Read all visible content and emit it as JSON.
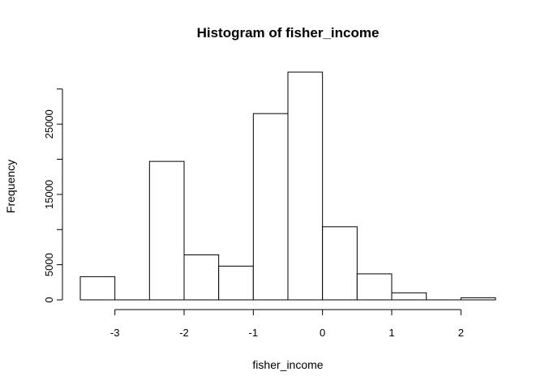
{
  "chart_data": {
    "type": "bar",
    "title": "Histogram of fisher_income",
    "xlabel": "fisher_income",
    "ylabel": "Frequency",
    "bins": [
      {
        "x0": -3.5,
        "x1": -3.0,
        "count": 3300
      },
      {
        "x0": -3.0,
        "x1": -2.5,
        "count": 0
      },
      {
        "x0": -2.5,
        "x1": -2.0,
        "count": 19700
      },
      {
        "x0": -2.0,
        "x1": -1.5,
        "count": 6400
      },
      {
        "x0": -1.5,
        "x1": -1.0,
        "count": 4800
      },
      {
        "x0": -1.0,
        "x1": -0.5,
        "count": 26500
      },
      {
        "x0": -0.5,
        "x1": 0.0,
        "count": 32400
      },
      {
        "x0": 0.0,
        "x1": 0.5,
        "count": 10400
      },
      {
        "x0": 0.5,
        "x1": 1.0,
        "count": 3700
      },
      {
        "x0": 1.0,
        "x1": 1.5,
        "count": 1000
      },
      {
        "x0": 1.5,
        "x1": 2.0,
        "count": 0
      },
      {
        "x0": 2.0,
        "x1": 2.5,
        "count": 300
      }
    ],
    "xticks": [
      -3,
      -2,
      -1,
      0,
      1,
      2
    ],
    "xtick_labels": [
      "-3",
      "-2",
      "-1",
      "0",
      "1",
      "2"
    ],
    "yticks": [
      0,
      5000,
      10000,
      15000,
      20000,
      25000,
      30000
    ],
    "ytick_labels": [
      "0",
      "5000",
      "",
      "15000",
      "",
      "25000",
      ""
    ],
    "xlim": [
      -3.5,
      2.5
    ],
    "ylim": [
      0,
      32400
    ],
    "grid": false,
    "colors": {
      "bar_fill": "#ffffff",
      "bar_stroke": "#000000"
    }
  }
}
